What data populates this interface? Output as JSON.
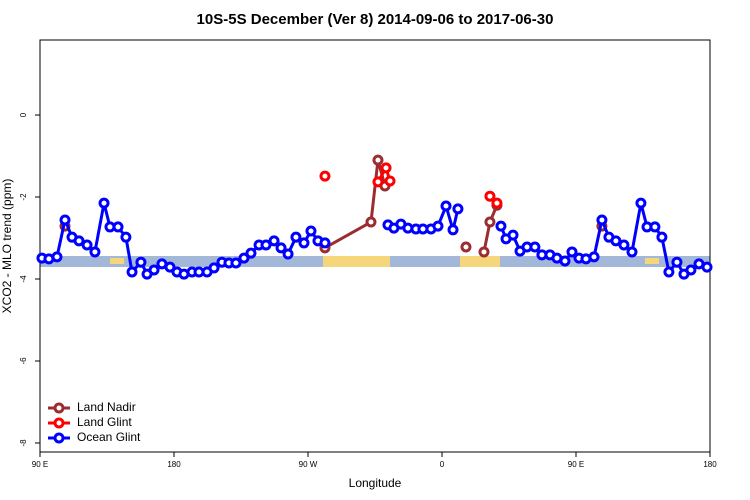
{
  "chart_data": {
    "type": "line",
    "title": "10S-5S December (Ver 8)   2014-09-06 to 2017-06-30",
    "x_label": "Longitude",
    "y_label": "XCO2 - MLO trend (ppm)",
    "xlim": [
      90,
      540
    ],
    "xticks": [
      {
        "value": 90,
        "label": "90 E"
      },
      {
        "value": 180,
        "label": "180"
      },
      {
        "value": 270,
        "label": "90 W"
      },
      {
        "value": 360,
        "label": "0"
      },
      {
        "value": 450,
        "label": "90 E"
      },
      {
        "value": 540,
        "label": "180"
      }
    ],
    "ylim": [
      -8.22,
      1.83
    ],
    "yticks": [
      0,
      -2,
      -4,
      -6,
      -8
    ],
    "legend": "bottom-left",
    "series": [
      {
        "name": "Land Nadir",
        "color": "#9b2d30",
        "x": [
          106.8,
          null,
          281.4,
          312.3,
          317.0,
          321.7,
          null,
          376.1,
          null,
          388.2,
          392.2,
          396.9,
          null,
          467.4
        ],
        "values": [
          -2.71,
          null,
          -3.24,
          -2.61,
          -1.1,
          -1.73,
          null,
          -3.22,
          null,
          -3.34,
          -2.61,
          -2.2,
          null,
          -2.71
        ]
      },
      {
        "name": "Land Glint",
        "color": "#ff0000",
        "x": [
          281.4,
          null,
          317.0,
          322.4,
          325.1,
          null,
          392.2,
          396.9
        ],
        "values": [
          -1.49,
          null,
          -1.63,
          -1.29,
          -1.61,
          null,
          -1.98,
          -2.15
        ]
      },
      {
        "name": "Ocean Glint",
        "color": "#0000ff",
        "x": [
          91.3,
          96.0,
          101.4,
          106.8,
          111.5,
          116.2,
          121.6,
          126.9,
          133.0,
          137.0,
          142.4,
          147.7,
          151.8,
          157.8,
          161.9,
          166.6,
          171.9,
          177.3,
          182.0,
          186.7,
          192.1,
          196.8,
          202.2,
          206.9,
          212.2,
          216.9,
          221.6,
          227.0,
          231.7,
          237.1,
          241.8,
          247.2,
          251.9,
          256.6,
          261.9,
          267.3,
          272.0,
          276.7,
          281.4,
          null,
          323.7,
          327.7,
          332.4,
          337.1,
          342.5,
          347.2,
          352.6,
          357.3,
          362.7,
          367.4,
          370.7,
          null,
          399.6,
          403.0,
          407.7,
          412.4,
          417.1,
          422.4,
          427.1,
          432.5,
          437.2,
          442.6,
          447.3,
          452.0,
          456.7,
          462.1,
          467.4,
          472.1,
          476.8,
          482.2,
          487.6,
          493.6,
          497.7,
          503.0,
          507.7,
          512.4,
          517.8,
          522.5,
          527.2,
          532.6,
          538.0
        ],
        "values": [
          -3.49,
          -3.51,
          -3.46,
          -2.56,
          -2.98,
          -3.07,
          -3.17,
          -3.34,
          -2.15,
          -2.73,
          -2.73,
          -2.98,
          -3.83,
          -3.59,
          -3.88,
          -3.78,
          -3.63,
          -3.71,
          -3.83,
          -3.88,
          -3.83,
          -3.83,
          -3.83,
          -3.73,
          -3.59,
          -3.61,
          -3.61,
          -3.49,
          -3.37,
          -3.17,
          -3.17,
          -3.07,
          -3.24,
          -3.39,
          -2.98,
          -3.12,
          -2.83,
          -3.07,
          -3.12,
          null,
          -2.68,
          -2.76,
          -2.66,
          -2.76,
          -2.78,
          -2.78,
          -2.78,
          -2.71,
          -2.22,
          -2.8,
          -2.29,
          null,
          -2.71,
          -3.02,
          -2.93,
          -3.32,
          -3.22,
          -3.22,
          -3.41,
          -3.41,
          -3.49,
          -3.56,
          -3.34,
          -3.49,
          -3.51,
          -3.46,
          -2.56,
          -2.98,
          -3.07,
          -3.17,
          -3.34,
          -2.15,
          -2.73,
          -2.73,
          -2.98,
          -3.83,
          -3.59,
          -3.88,
          -3.78,
          -3.63,
          -3.71
        ]
      }
    ]
  }
}
